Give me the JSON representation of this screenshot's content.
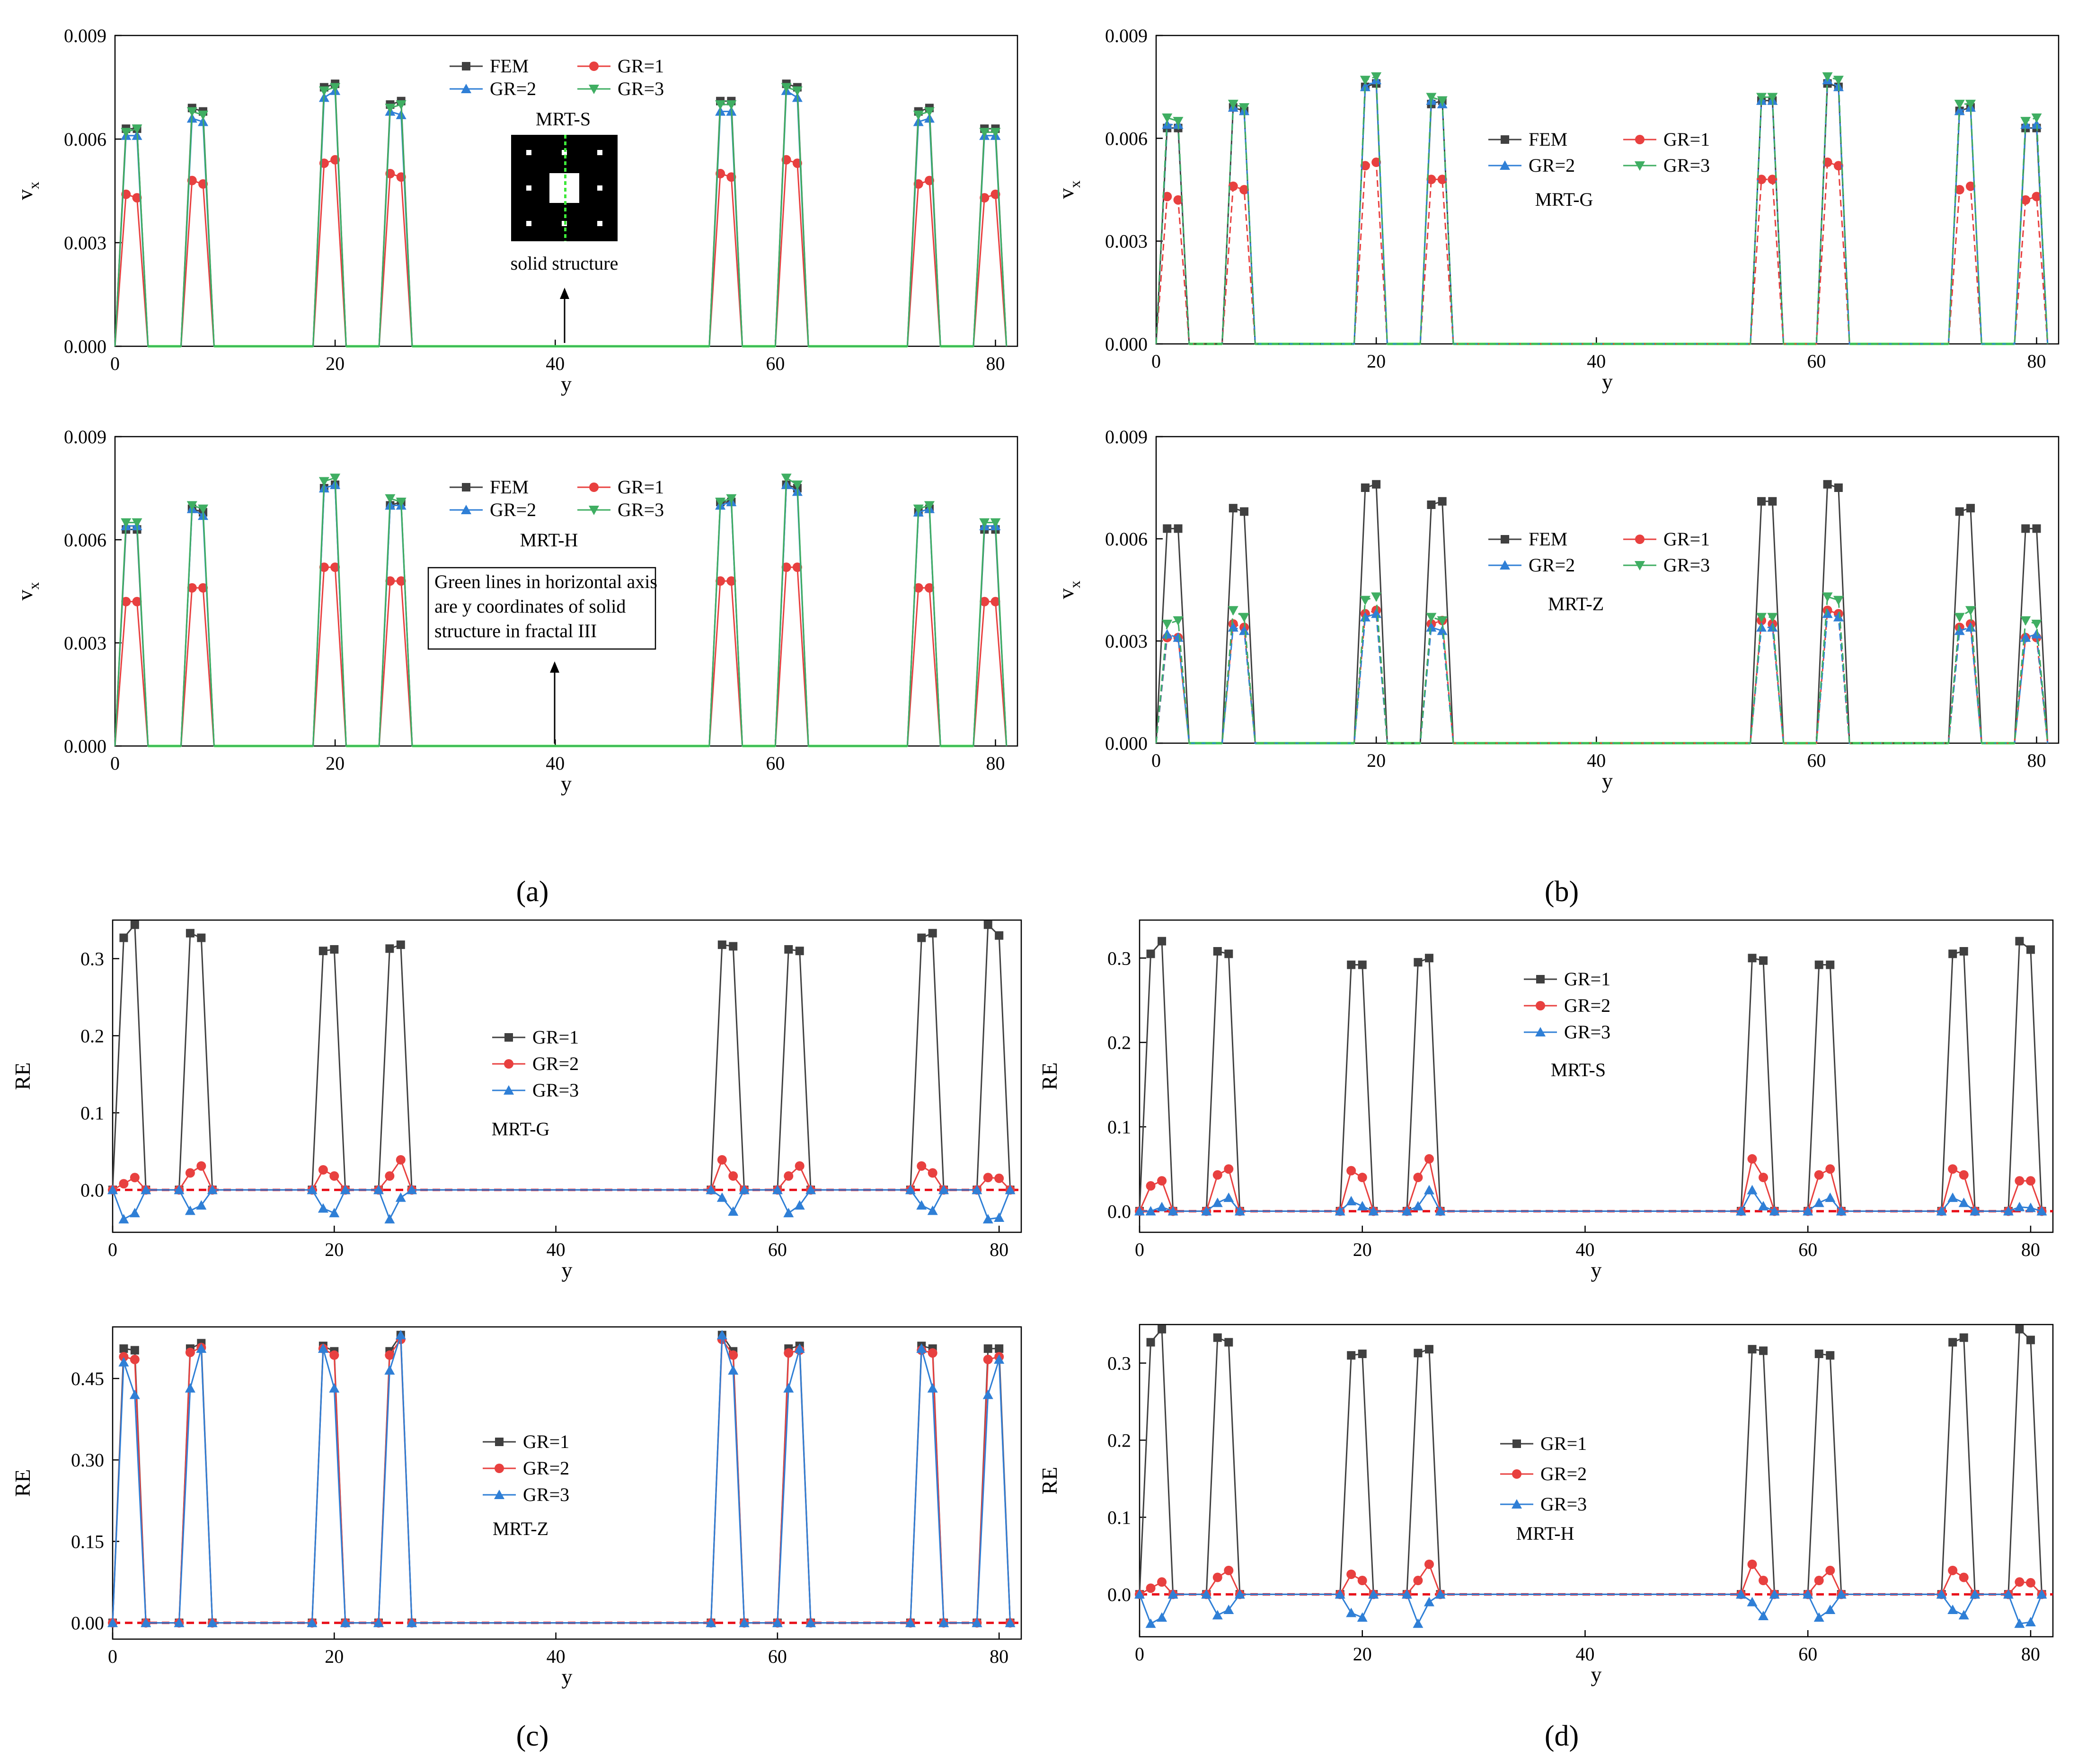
{
  "colors": {
    "FEM": "#404040",
    "GR1": "#e8403f",
    "GR2": "#2f7fd6",
    "GR3": "#3fae62",
    "green_line": "#3ee83a",
    "red_dash": "#e8111b"
  },
  "captions": {
    "a": "(a)",
    "b": "(b)",
    "c": "(c)",
    "d": "(d)"
  },
  "shared": {
    "y_positions": [
      0,
      1,
      2,
      3,
      6,
      7,
      8,
      9,
      18,
      19,
      20,
      21,
      24,
      25,
      26,
      27,
      54,
      55,
      56,
      57,
      60,
      61,
      62,
      63,
      72,
      73,
      74,
      75,
      78,
      79,
      80,
      81
    ],
    "solid_ranges": [
      [
        3,
        6
      ],
      [
        9,
        18
      ],
      [
        21,
        24
      ],
      [
        27,
        54
      ],
      [
        57,
        60
      ],
      [
        63,
        72
      ],
      [
        75,
        78
      ]
    ],
    "fem_peak_values": [
      0.0063,
      0.0063,
      0.0069,
      0.0068,
      0.0075,
      0.0076,
      0.007,
      0.0071,
      0.0071,
      0.0071,
      0.0076,
      0.0075,
      0.0068,
      0.0069,
      0.0063,
      0.0063
    ],
    "vx_y_label": "v",
    "vx_y_sub": "x",
    "x_label": "y",
    "re_y_label": "RE"
  },
  "chart_data": [
    {
      "id": "a1",
      "type": "line",
      "method": "MRT-S",
      "ylabel": "vx",
      "xlabel": "y",
      "xlim": [
        0,
        82
      ],
      "ylim": [
        0,
        0.009
      ],
      "xticks": [
        0,
        20,
        40,
        60,
        80
      ],
      "xtick_labels": [
        "0",
        "20",
        "40",
        "60",
        "80"
      ],
      "yticks": [
        0,
        0.003,
        0.006,
        0.009
      ],
      "ytick_labels": [
        "0.000",
        "0.003",
        "0.006",
        "0.009"
      ],
      "legend": [
        "FEM",
        "GR=1",
        "GR=2",
        "GR=3"
      ],
      "series": [
        {
          "name": "FEM",
          "peaks": [
            0.0063,
            0.0063,
            0.0069,
            0.0068,
            0.0075,
            0.0076,
            0.007,
            0.0071,
            0.0071,
            0.0071,
            0.0076,
            0.0075,
            0.0068,
            0.0069,
            0.0063,
            0.0063
          ]
        },
        {
          "name": "GR=1",
          "peaks": [
            0.0044,
            0.0043,
            0.0048,
            0.0047,
            0.0053,
            0.0054,
            0.005,
            0.0049,
            0.005,
            0.0049,
            0.0054,
            0.0053,
            0.0047,
            0.0048,
            0.0043,
            0.0044
          ]
        },
        {
          "name": "GR=2",
          "peaks": [
            0.0061,
            0.0061,
            0.0066,
            0.0065,
            0.0072,
            0.0074,
            0.0068,
            0.0067,
            0.0068,
            0.0068,
            0.0074,
            0.0072,
            0.0065,
            0.0066,
            0.0061,
            0.0061
          ]
        },
        {
          "name": "GR=3",
          "peaks": [
            0.0062,
            0.0063,
            0.0068,
            0.0067,
            0.0074,
            0.0075,
            0.0069,
            0.007,
            0.007,
            0.007,
            0.0075,
            0.0074,
            0.0067,
            0.0068,
            0.0062,
            0.0062
          ]
        }
      ],
      "annotations": {
        "method_label": "MRT-S",
        "inset_caption": "solid structure"
      }
    },
    {
      "id": "a2",
      "type": "line",
      "method": "MRT-H",
      "ylabel": "vx",
      "xlabel": "y",
      "xlim": [
        0,
        82
      ],
      "ylim": [
        0,
        0.009
      ],
      "xticks": [
        0,
        20,
        40,
        60,
        80
      ],
      "xtick_labels": [
        "0",
        "20",
        "40",
        "60",
        "80"
      ],
      "yticks": [
        0,
        0.003,
        0.006,
        0.009
      ],
      "ytick_labels": [
        "0.000",
        "0.003",
        "0.006",
        "0.009"
      ],
      "legend": [
        "FEM",
        "GR=1",
        "GR=2",
        "GR=3"
      ],
      "series": [
        {
          "name": "FEM",
          "peaks": [
            0.0063,
            0.0063,
            0.0069,
            0.0068,
            0.0075,
            0.0076,
            0.007,
            0.0071,
            0.0071,
            0.0071,
            0.0076,
            0.0075,
            0.0068,
            0.0069,
            0.0063,
            0.0063
          ]
        },
        {
          "name": "GR=1",
          "peaks": [
            0.0042,
            0.0042,
            0.0046,
            0.0046,
            0.0052,
            0.0052,
            0.0048,
            0.0048,
            0.0048,
            0.0048,
            0.0052,
            0.0052,
            0.0046,
            0.0046,
            0.0042,
            0.0042
          ]
        },
        {
          "name": "GR=2",
          "peaks": [
            0.0064,
            0.0064,
            0.0069,
            0.0067,
            0.0075,
            0.0076,
            0.007,
            0.007,
            0.007,
            0.0071,
            0.0076,
            0.0074,
            0.0068,
            0.0069,
            0.0064,
            0.0064
          ]
        },
        {
          "name": "GR=3",
          "peaks": [
            0.0065,
            0.0065,
            0.007,
            0.0069,
            0.0077,
            0.0078,
            0.0072,
            0.0071,
            0.0071,
            0.0072,
            0.0078,
            0.0076,
            0.0069,
            0.007,
            0.0065,
            0.0065
          ]
        }
      ],
      "annotations": {
        "method_label": "MRT-H",
        "note_lines": [
          "Green lines in horizontal axis",
          "are y coordinates of solid",
          "structure in fractal III"
        ]
      }
    },
    {
      "id": "b1",
      "type": "line",
      "method": "MRT-G",
      "ylabel": "vx",
      "xlabel": "y",
      "xlim": [
        0,
        82
      ],
      "ylim": [
        0,
        0.009
      ],
      "xticks": [
        0,
        20,
        40,
        60,
        80
      ],
      "xtick_labels": [
        "0",
        "20",
        "40",
        "60",
        "80"
      ],
      "yticks": [
        0,
        0.003,
        0.006,
        0.009
      ],
      "ytick_labels": [
        "0.000",
        "0.003",
        "0.006",
        "0.009"
      ],
      "legend": [
        "FEM",
        "GR=1",
        "GR=2",
        "GR=3"
      ],
      "series": [
        {
          "name": "FEM",
          "peaks": [
            0.0063,
            0.0063,
            0.0069,
            0.0068,
            0.0075,
            0.0076,
            0.007,
            0.0071,
            0.0071,
            0.0071,
            0.0076,
            0.0075,
            0.0068,
            0.0069,
            0.0063,
            0.0063
          ]
        },
        {
          "name": "GR=1",
          "peaks": [
            0.0043,
            0.0042,
            0.0046,
            0.0045,
            0.0052,
            0.0053,
            0.0048,
            0.0048,
            0.0048,
            0.0048,
            0.0053,
            0.0052,
            0.0045,
            0.0046,
            0.0042,
            0.0043
          ]
        },
        {
          "name": "GR=2",
          "peaks": [
            0.0064,
            0.0064,
            0.0069,
            0.0068,
            0.0075,
            0.0077,
            0.0071,
            0.007,
            0.0071,
            0.0071,
            0.0077,
            0.0075,
            0.0068,
            0.0069,
            0.0064,
            0.0064
          ]
        },
        {
          "name": "GR=3",
          "peaks": [
            0.0066,
            0.0065,
            0.007,
            0.0069,
            0.0077,
            0.0078,
            0.0072,
            0.0071,
            0.0072,
            0.0072,
            0.0078,
            0.0077,
            0.007,
            0.007,
            0.0065,
            0.0066
          ]
        }
      ],
      "annotations": {
        "method_label": "MRT-G"
      }
    },
    {
      "id": "b2",
      "type": "line",
      "method": "MRT-Z",
      "ylabel": "vx",
      "xlabel": "y",
      "xlim": [
        0,
        82
      ],
      "ylim": [
        0,
        0.009
      ],
      "xticks": [
        0,
        20,
        40,
        60,
        80
      ],
      "xtick_labels": [
        "0",
        "20",
        "40",
        "60",
        "80"
      ],
      "yticks": [
        0,
        0.003,
        0.006,
        0.009
      ],
      "ytick_labels": [
        "0.000",
        "0.003",
        "0.006",
        "0.009"
      ],
      "legend": [
        "FEM",
        "GR=1",
        "GR=2",
        "GR=3"
      ],
      "series": [
        {
          "name": "FEM",
          "peaks": [
            0.0063,
            0.0063,
            0.0069,
            0.0068,
            0.0075,
            0.0076,
            0.007,
            0.0071,
            0.0071,
            0.0071,
            0.0076,
            0.0075,
            0.0068,
            0.0069,
            0.0063,
            0.0063
          ]
        },
        {
          "name": "GR=1",
          "peaks": [
            0.0031,
            0.0031,
            0.0035,
            0.0034,
            0.0038,
            0.0039,
            0.0035,
            0.0036,
            0.0036,
            0.0035,
            0.0039,
            0.0038,
            0.0034,
            0.0035,
            0.0031,
            0.0031
          ]
        },
        {
          "name": "GR=2",
          "peaks": [
            0.0032,
            0.0031,
            0.0034,
            0.0033,
            0.0037,
            0.0038,
            0.0034,
            0.0033,
            0.0034,
            0.0034,
            0.0038,
            0.0037,
            0.0033,
            0.0034,
            0.0031,
            0.0032
          ]
        },
        {
          "name": "GR=3",
          "peaks": [
            0.0035,
            0.0036,
            0.0039,
            0.0037,
            0.0042,
            0.0043,
            0.0037,
            0.0036,
            0.0037,
            0.0037,
            0.0043,
            0.0042,
            0.0037,
            0.0039,
            0.0036,
            0.0035
          ]
        }
      ],
      "annotations": {
        "method_label": "MRT-Z"
      }
    },
    {
      "id": "c1",
      "type": "line",
      "method": "MRT-G",
      "ylabel": "RE",
      "xlabel": "y",
      "xlim": [
        0,
        82
      ],
      "ylim": [
        -0.055,
        0.35
      ],
      "xticks": [
        0,
        20,
        40,
        60,
        80
      ],
      "xtick_labels": [
        "0",
        "20",
        "40",
        "60",
        "80"
      ],
      "yticks": [
        0.0,
        0.1,
        0.2,
        0.3
      ],
      "ytick_labels": [
        "0.0",
        "0.1",
        "0.2",
        "0.3"
      ],
      "legend": [
        "GR=1",
        "GR=2",
        "GR=3"
      ],
      "series": [
        {
          "name": "GR=1",
          "peaks": [
            0.327,
            0.344,
            0.333,
            0.327,
            0.31,
            0.312,
            0.313,
            0.318,
            0.318,
            0.316,
            0.312,
            0.31,
            0.327,
            0.333,
            0.344,
            0.33
          ]
        },
        {
          "name": "GR=2",
          "peaks": [
            0.008,
            0.016,
            0.022,
            0.031,
            0.026,
            0.018,
            0.018,
            0.039,
            0.039,
            0.018,
            0.018,
            0.031,
            0.031,
            0.022,
            0.016,
            0.015
          ]
        },
        {
          "name": "GR=3",
          "peaks": [
            -0.038,
            -0.03,
            -0.027,
            -0.02,
            -0.024,
            -0.03,
            -0.038,
            -0.01,
            -0.01,
            -0.028,
            -0.03,
            -0.02,
            -0.02,
            -0.027,
            -0.038,
            -0.036
          ]
        }
      ],
      "annotations": {
        "method_label": "MRT-G"
      }
    },
    {
      "id": "c2",
      "type": "line",
      "method": "MRT-Z",
      "ylabel": "RE",
      "xlabel": "y",
      "xlim": [
        0,
        82
      ],
      "ylim": [
        -0.03,
        0.545
      ],
      "xticks": [
        0,
        20,
        40,
        60,
        80
      ],
      "xtick_labels": [
        "0",
        "20",
        "40",
        "60",
        "80"
      ],
      "yticks": [
        0.0,
        0.15,
        0.3,
        0.45
      ],
      "ytick_labels": [
        "0.00",
        "0.15",
        "0.30",
        "0.45"
      ],
      "legend": [
        "GR=1",
        "GR=2",
        "GR=3"
      ],
      "series": [
        {
          "name": "GR=1",
          "peaks": [
            0.505,
            0.502,
            0.505,
            0.515,
            0.51,
            0.5,
            0.5,
            0.53,
            0.53,
            0.5,
            0.505,
            0.51,
            0.51,
            0.505,
            0.505,
            0.505
          ]
        },
        {
          "name": "GR=2",
          "peaks": [
            0.49,
            0.485,
            0.498,
            0.507,
            0.505,
            0.493,
            0.493,
            0.522,
            0.522,
            0.493,
            0.497,
            0.502,
            0.502,
            0.497,
            0.485,
            0.49
          ]
        },
        {
          "name": "GR=3",
          "peaks": [
            0.48,
            0.42,
            0.432,
            0.505,
            0.505,
            0.432,
            0.465,
            0.53,
            0.53,
            0.465,
            0.432,
            0.505,
            0.505,
            0.432,
            0.42,
            0.485
          ]
        }
      ],
      "annotations": {
        "method_label": "MRT-Z"
      }
    },
    {
      "id": "d1",
      "type": "line",
      "method": "MRT-S",
      "ylabel": "RE",
      "xlabel": "y",
      "xlim": [
        0,
        82
      ],
      "ylim": [
        -0.025,
        0.345
      ],
      "xticks": [
        0,
        20,
        40,
        60,
        80
      ],
      "xtick_labels": [
        "0",
        "20",
        "40",
        "60",
        "80"
      ],
      "yticks": [
        0.0,
        0.1,
        0.2,
        0.3
      ],
      "ytick_labels": [
        "0.0",
        "0.1",
        "0.2",
        "0.3"
      ],
      "legend": [
        "GR=1",
        "GR=2",
        "GR=3"
      ],
      "series": [
        {
          "name": "GR=1",
          "peaks": [
            0.305,
            0.32,
            0.308,
            0.305,
            0.292,
            0.292,
            0.295,
            0.3,
            0.3,
            0.297,
            0.292,
            0.292,
            0.305,
            0.308,
            0.32,
            0.31
          ]
        },
        {
          "name": "GR=2",
          "peaks": [
            0.03,
            0.036,
            0.043,
            0.05,
            0.048,
            0.04,
            0.04,
            0.062,
            0.062,
            0.04,
            0.043,
            0.05,
            0.05,
            0.043,
            0.036,
            0.036
          ]
        },
        {
          "name": "GR=3",
          "peaks": [
            0.0,
            0.005,
            0.01,
            0.016,
            0.012,
            0.006,
            0.006,
            0.025,
            0.025,
            0.006,
            0.01,
            0.016,
            0.016,
            0.01,
            0.005,
            0.004
          ]
        }
      ],
      "annotations": {
        "method_label": "MRT-S"
      }
    },
    {
      "id": "d2",
      "type": "line",
      "method": "MRT-H",
      "ylabel": "RE",
      "xlabel": "y",
      "xlim": [
        0,
        82
      ],
      "ylim": [
        -0.055,
        0.35
      ],
      "xticks": [
        0,
        20,
        40,
        60,
        80
      ],
      "xtick_labels": [
        "0",
        "20",
        "40",
        "60",
        "80"
      ],
      "yticks": [
        0.0,
        0.1,
        0.2,
        0.3
      ],
      "ytick_labels": [
        "0.0",
        "0.1",
        "0.2",
        "0.3"
      ],
      "legend": [
        "GR=1",
        "GR=2",
        "GR=3"
      ],
      "series": [
        {
          "name": "GR=1",
          "peaks": [
            0.327,
            0.344,
            0.333,
            0.327,
            0.31,
            0.312,
            0.313,
            0.318,
            0.318,
            0.316,
            0.312,
            0.31,
            0.327,
            0.333,
            0.344,
            0.33
          ]
        },
        {
          "name": "GR=2",
          "peaks": [
            0.008,
            0.016,
            0.022,
            0.031,
            0.026,
            0.018,
            0.018,
            0.039,
            0.039,
            0.018,
            0.018,
            0.031,
            0.031,
            0.022,
            0.016,
            0.015
          ]
        },
        {
          "name": "GR=3",
          "peaks": [
            -0.038,
            -0.03,
            -0.027,
            -0.02,
            -0.024,
            -0.03,
            -0.038,
            -0.01,
            -0.01,
            -0.028,
            -0.03,
            -0.02,
            -0.02,
            -0.027,
            -0.038,
            -0.036
          ]
        }
      ],
      "annotations": {
        "method_label": "MRT-H"
      }
    }
  ]
}
